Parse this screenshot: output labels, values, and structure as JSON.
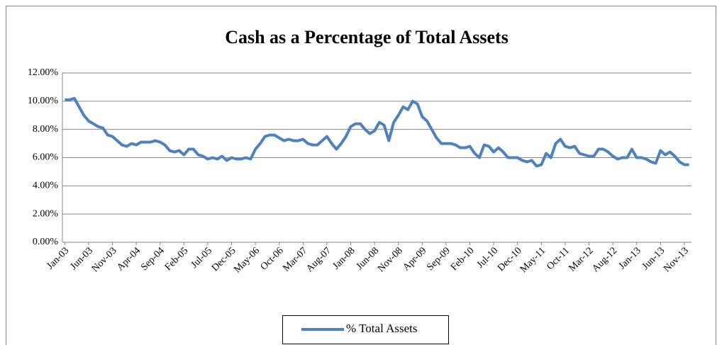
{
  "chart_data": {
    "type": "line",
    "title": "Cash as a Percentage of Total Assets",
    "categories": [
      "Jan-03",
      null,
      null,
      null,
      null,
      "Jun-03",
      null,
      null,
      null,
      null,
      "Nov-03",
      null,
      null,
      null,
      null,
      "Apr-04",
      null,
      null,
      null,
      null,
      "Sep-04",
      null,
      null,
      null,
      null,
      "Feb-05",
      null,
      null,
      null,
      null,
      "Jul-05",
      null,
      null,
      null,
      null,
      "Dec-05",
      null,
      null,
      null,
      null,
      "May-06",
      null,
      null,
      null,
      null,
      "Oct-06",
      null,
      null,
      null,
      null,
      "Mar-07",
      null,
      null,
      null,
      null,
      "Aug-07",
      null,
      null,
      null,
      null,
      "Jan-08",
      null,
      null,
      null,
      null,
      "Jun-08",
      null,
      null,
      null,
      null,
      "Nov-08",
      null,
      null,
      null,
      null,
      "Apr-09",
      null,
      null,
      null,
      null,
      "Sep-09",
      null,
      null,
      null,
      null,
      "Feb-10",
      null,
      null,
      null,
      null,
      "Jul-10",
      null,
      null,
      null,
      null,
      "Dec-10",
      null,
      null,
      null,
      null,
      "May-11",
      null,
      null,
      null,
      null,
      "Oct-11",
      null,
      null,
      null,
      null,
      "Mar-12",
      null,
      null,
      null,
      null,
      "Aug-12",
      null,
      null,
      null,
      null,
      "Jan-13",
      null,
      null,
      null,
      null,
      "Jun-13",
      null,
      null,
      null,
      null,
      "Nov-13",
      null
    ],
    "series": [
      {
        "name": "% Total Assets",
        "color": "#4f81bd",
        "values": [
          10.1,
          10.1,
          10.2,
          9.6,
          9.0,
          8.6,
          8.4,
          8.2,
          8.1,
          7.6,
          7.5,
          7.2,
          6.9,
          6.8,
          7.0,
          6.9,
          7.1,
          7.1,
          7.1,
          7.2,
          7.1,
          6.9,
          6.5,
          6.4,
          6.5,
          6.2,
          6.6,
          6.6,
          6.2,
          6.1,
          5.9,
          6.0,
          5.9,
          6.1,
          5.8,
          6.0,
          5.9,
          5.9,
          6.0,
          5.9,
          6.6,
          7.0,
          7.5,
          7.6,
          7.6,
          7.4,
          7.2,
          7.3,
          7.2,
          7.2,
          7.3,
          7.0,
          6.9,
          6.9,
          7.2,
          7.5,
          7.0,
          6.6,
          7.0,
          7.5,
          8.2,
          8.4,
          8.4,
          8.0,
          7.7,
          7.9,
          8.5,
          8.3,
          7.2,
          8.5,
          9.0,
          9.6,
          9.4,
          10.0,
          9.8,
          8.9,
          8.6,
          8.0,
          7.4,
          7.0,
          7.0,
          7.0,
          6.9,
          6.7,
          6.7,
          6.8,
          6.3,
          6.0,
          6.9,
          6.8,
          6.4,
          6.7,
          6.4,
          6.0,
          6.0,
          6.0,
          5.8,
          5.7,
          5.8,
          5.4,
          5.5,
          6.3,
          6.0,
          7.0,
          7.3,
          6.8,
          6.7,
          6.8,
          6.3,
          6.2,
          6.1,
          6.1,
          6.6,
          6.6,
          6.4,
          6.1,
          5.9,
          6.0,
          6.0,
          6.6,
          6.0,
          6.0,
          5.9,
          5.7,
          5.6,
          6.5,
          6.2,
          6.4,
          6.1,
          5.7,
          5.5,
          5.5
        ]
      }
    ],
    "ylim": [
      0,
      12
    ],
    "yticks": [
      {
        "value": 0,
        "label": "0.00%"
      },
      {
        "value": 2,
        "label": "2.00%"
      },
      {
        "value": 4,
        "label": "4.00%"
      },
      {
        "value": 6,
        "label": "6.00%"
      },
      {
        "value": 8,
        "label": "8.00%"
      },
      {
        "value": 10,
        "label": "10.00%"
      },
      {
        "value": 12,
        "label": "12.00%"
      }
    ],
    "grid": true,
    "legend": "bottom"
  }
}
